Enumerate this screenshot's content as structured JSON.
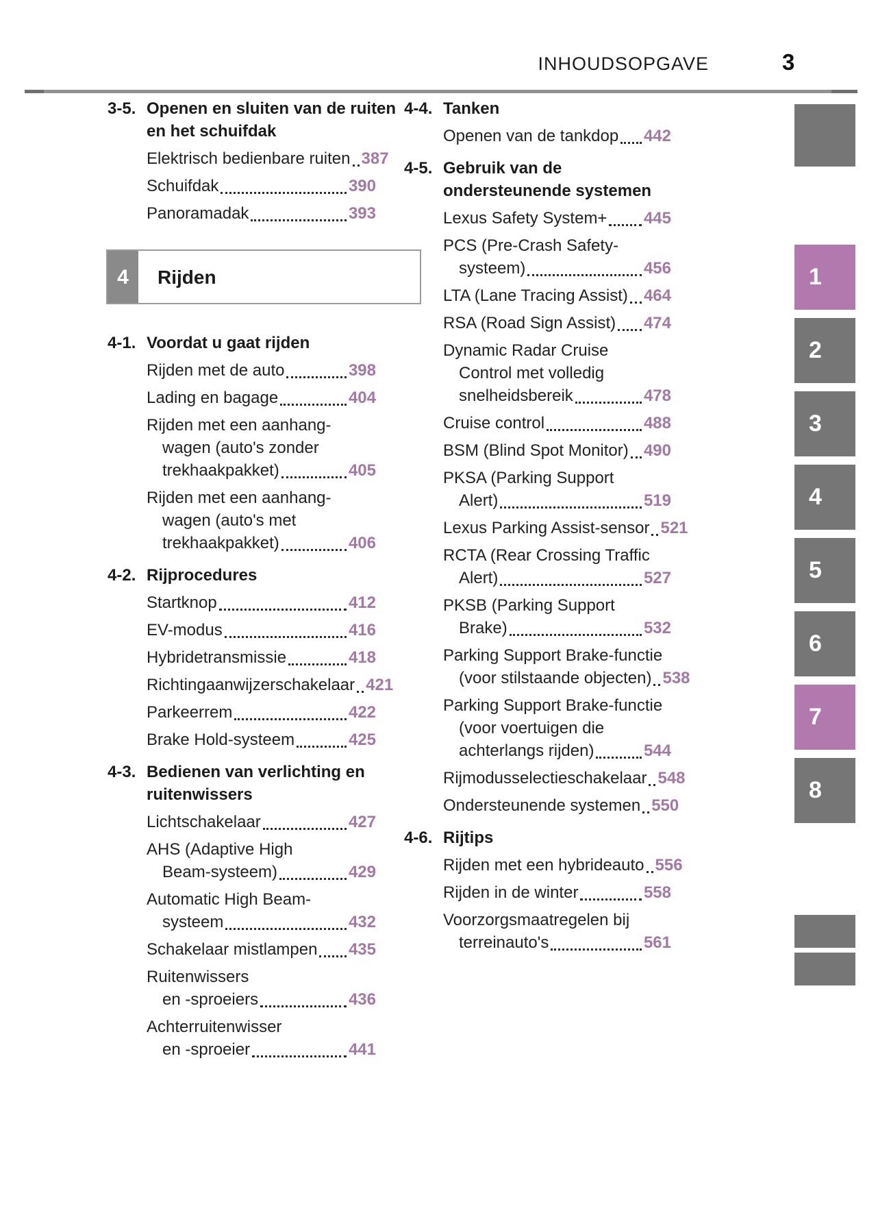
{
  "header": {
    "title": "INHOUDSOPGAVE",
    "page_number": "3"
  },
  "colors": {
    "page_ref_accent": "#a478a5",
    "tab_active": "#b279ae",
    "tab_inactive": "#767676",
    "chapter_square": "#8a8a8a"
  },
  "columns": {
    "left": {
      "blocks": [
        {
          "type": "section",
          "number": "3-5.",
          "title_lines": [
            "Openen en sluiten van de ruiten",
            "en het schuifdak"
          ],
          "entries": [
            {
              "lines": [
                "Elektrisch bedienbare ruiten"
              ],
              "page": "387"
            },
            {
              "lines": [
                "Schuifdak"
              ],
              "page": "390"
            },
            {
              "lines": [
                "Panoramadak"
              ],
              "page": "393"
            }
          ]
        },
        {
          "type": "chapter",
          "number": "4",
          "title": "Rijden"
        },
        {
          "type": "section",
          "number": "4-1.",
          "title_lines": [
            "Voordat u gaat rijden"
          ],
          "entries": [
            {
              "lines": [
                "Rijden met de auto"
              ],
              "page": "398"
            },
            {
              "lines": [
                "Lading en bagage"
              ],
              "page": "404"
            },
            {
              "lines": [
                "Rijden met een aanhang-",
                "wagen (auto's zonder",
                "trekhaakpakket)"
              ],
              "page": "405"
            },
            {
              "lines": [
                "Rijden met een aanhang-",
                "wagen (auto's met",
                "trekhaakpakket)"
              ],
              "page": "406"
            }
          ]
        },
        {
          "type": "section",
          "number": "4-2.",
          "title_lines": [
            "Rijprocedures"
          ],
          "entries": [
            {
              "lines": [
                "Startknop"
              ],
              "page": "412"
            },
            {
              "lines": [
                "EV-modus"
              ],
              "page": "416"
            },
            {
              "lines": [
                "Hybridetransmissie"
              ],
              "page": "418"
            },
            {
              "lines": [
                "Richtingaanwijzerschakelaar"
              ],
              "page": "421"
            },
            {
              "lines": [
                "Parkeerrem"
              ],
              "page": "422"
            },
            {
              "lines": [
                "Brake Hold-systeem"
              ],
              "page": "425"
            }
          ]
        },
        {
          "type": "section",
          "number": "4-3.",
          "title_lines": [
            "Bedienen van verlichting en",
            "ruitenwissers"
          ],
          "entries": [
            {
              "lines": [
                "Lichtschakelaar"
              ],
              "page": "427"
            },
            {
              "lines": [
                "AHS (Adaptive High",
                "Beam-systeem)"
              ],
              "page": "429"
            },
            {
              "lines": [
                "Automatic High Beam-",
                "systeem"
              ],
              "page": "432"
            },
            {
              "lines": [
                "Schakelaar mistlampen"
              ],
              "page": "435"
            },
            {
              "lines": [
                "Ruitenwissers",
                "en -sproeiers"
              ],
              "page": "436"
            },
            {
              "lines": [
                "Achterruitenwisser",
                "en -sproeier"
              ],
              "page": "441"
            }
          ]
        }
      ]
    },
    "right": {
      "blocks": [
        {
          "type": "section",
          "number": "4-4.",
          "title_lines": [
            "Tanken"
          ],
          "entries": [
            {
              "lines": [
                "Openen van de tankdop"
              ],
              "page": "442"
            }
          ]
        },
        {
          "type": "section",
          "number": "4-5.",
          "title_lines": [
            "Gebruik van de",
            "ondersteunende systemen"
          ],
          "entries": [
            {
              "lines": [
                "Lexus Safety System+"
              ],
              "page": "445"
            },
            {
              "lines": [
                "PCS (Pre-Crash Safety-",
                "systeem)"
              ],
              "page": "456"
            },
            {
              "lines": [
                "LTA (Lane Tracing Assist)"
              ],
              "page": "464"
            },
            {
              "lines": [
                "RSA (Road Sign Assist)"
              ],
              "page": "474"
            },
            {
              "lines": [
                "Dynamic Radar Cruise",
                "Control met volledig",
                "snelheidsbereik"
              ],
              "page": "478"
            },
            {
              "lines": [
                "Cruise control"
              ],
              "page": "488"
            },
            {
              "lines": [
                "BSM (Blind Spot Monitor)"
              ],
              "page": "490"
            },
            {
              "lines": [
                "PKSA (Parking Support",
                "Alert)"
              ],
              "page": "519"
            },
            {
              "lines": [
                "Lexus Parking Assist-sensor"
              ],
              "page": "521"
            },
            {
              "lines": [
                "RCTA (Rear Crossing Traffic",
                "Alert)"
              ],
              "page": "527"
            },
            {
              "lines": [
                "PKSB (Parking Support",
                "Brake)"
              ],
              "page": "532"
            },
            {
              "lines": [
                "Parking Support Brake-functie",
                "(voor stilstaande objecten)"
              ],
              "page": "538"
            },
            {
              "lines": [
                "Parking Support Brake-functie",
                "(voor voertuigen die",
                "achterlangs rijden)"
              ],
              "page": "544"
            },
            {
              "lines": [
                "Rijmodusselectieschakelaar"
              ],
              "page": "548"
            },
            {
              "lines": [
                "Ondersteunende systemen"
              ],
              "page": "550"
            }
          ]
        },
        {
          "type": "section",
          "number": "4-6.",
          "title_lines": [
            "Rijtips"
          ],
          "entries": [
            {
              "lines": [
                "Rijden met een hybrideauto"
              ],
              "page": "556"
            },
            {
              "lines": [
                "Rijden in de winter"
              ],
              "page": "558"
            },
            {
              "lines": [
                "Voorzorgsmaatregelen bij",
                "terreinauto's"
              ],
              "page": "561"
            }
          ]
        }
      ]
    }
  },
  "sidebar": {
    "tabs": [
      {
        "label": "1",
        "active": true
      },
      {
        "label": "2",
        "active": false
      },
      {
        "label": "3",
        "active": false
      },
      {
        "label": "4",
        "active": false
      },
      {
        "label": "5",
        "active": false
      },
      {
        "label": "6",
        "active": false
      },
      {
        "label": "7",
        "active": true
      },
      {
        "label": "8",
        "active": false
      }
    ]
  }
}
